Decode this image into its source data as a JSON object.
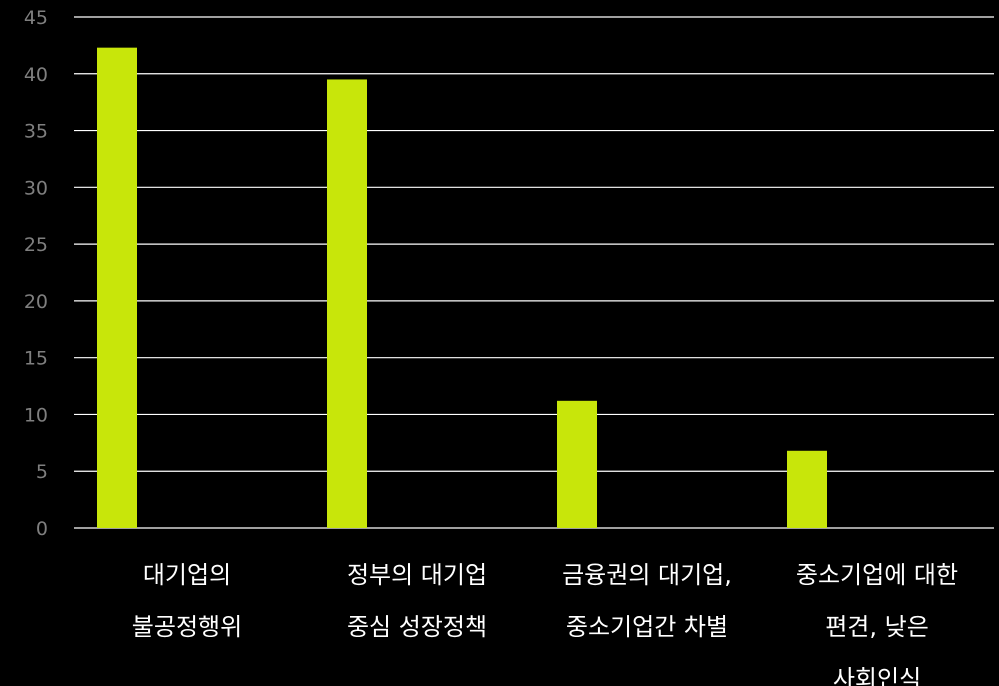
{
  "chart_data": {
    "type": "bar",
    "categories": [
      [
        "대기업의",
        "불공정행위"
      ],
      [
        "정부의 대기업",
        "중심 성장정책"
      ],
      [
        "금융권의 대기업,",
        "중소기업간 차별"
      ],
      [
        "중소기업에 대한",
        "편견, 낮은",
        "사회인식"
      ]
    ],
    "values": [
      42.3,
      39.5,
      11.2,
      6.8
    ],
    "ylim": [
      0,
      45
    ],
    "yticks": [
      "0",
      "5",
      "10",
      "15",
      "20",
      "25",
      "30",
      "35",
      "40",
      "45"
    ],
    "grid": true,
    "colors": {
      "bar": "#c8e60a",
      "background": "#000000",
      "grid": "#ffffff",
      "tick_label": "#7f7f7f",
      "category_label": "#ffffff"
    }
  }
}
